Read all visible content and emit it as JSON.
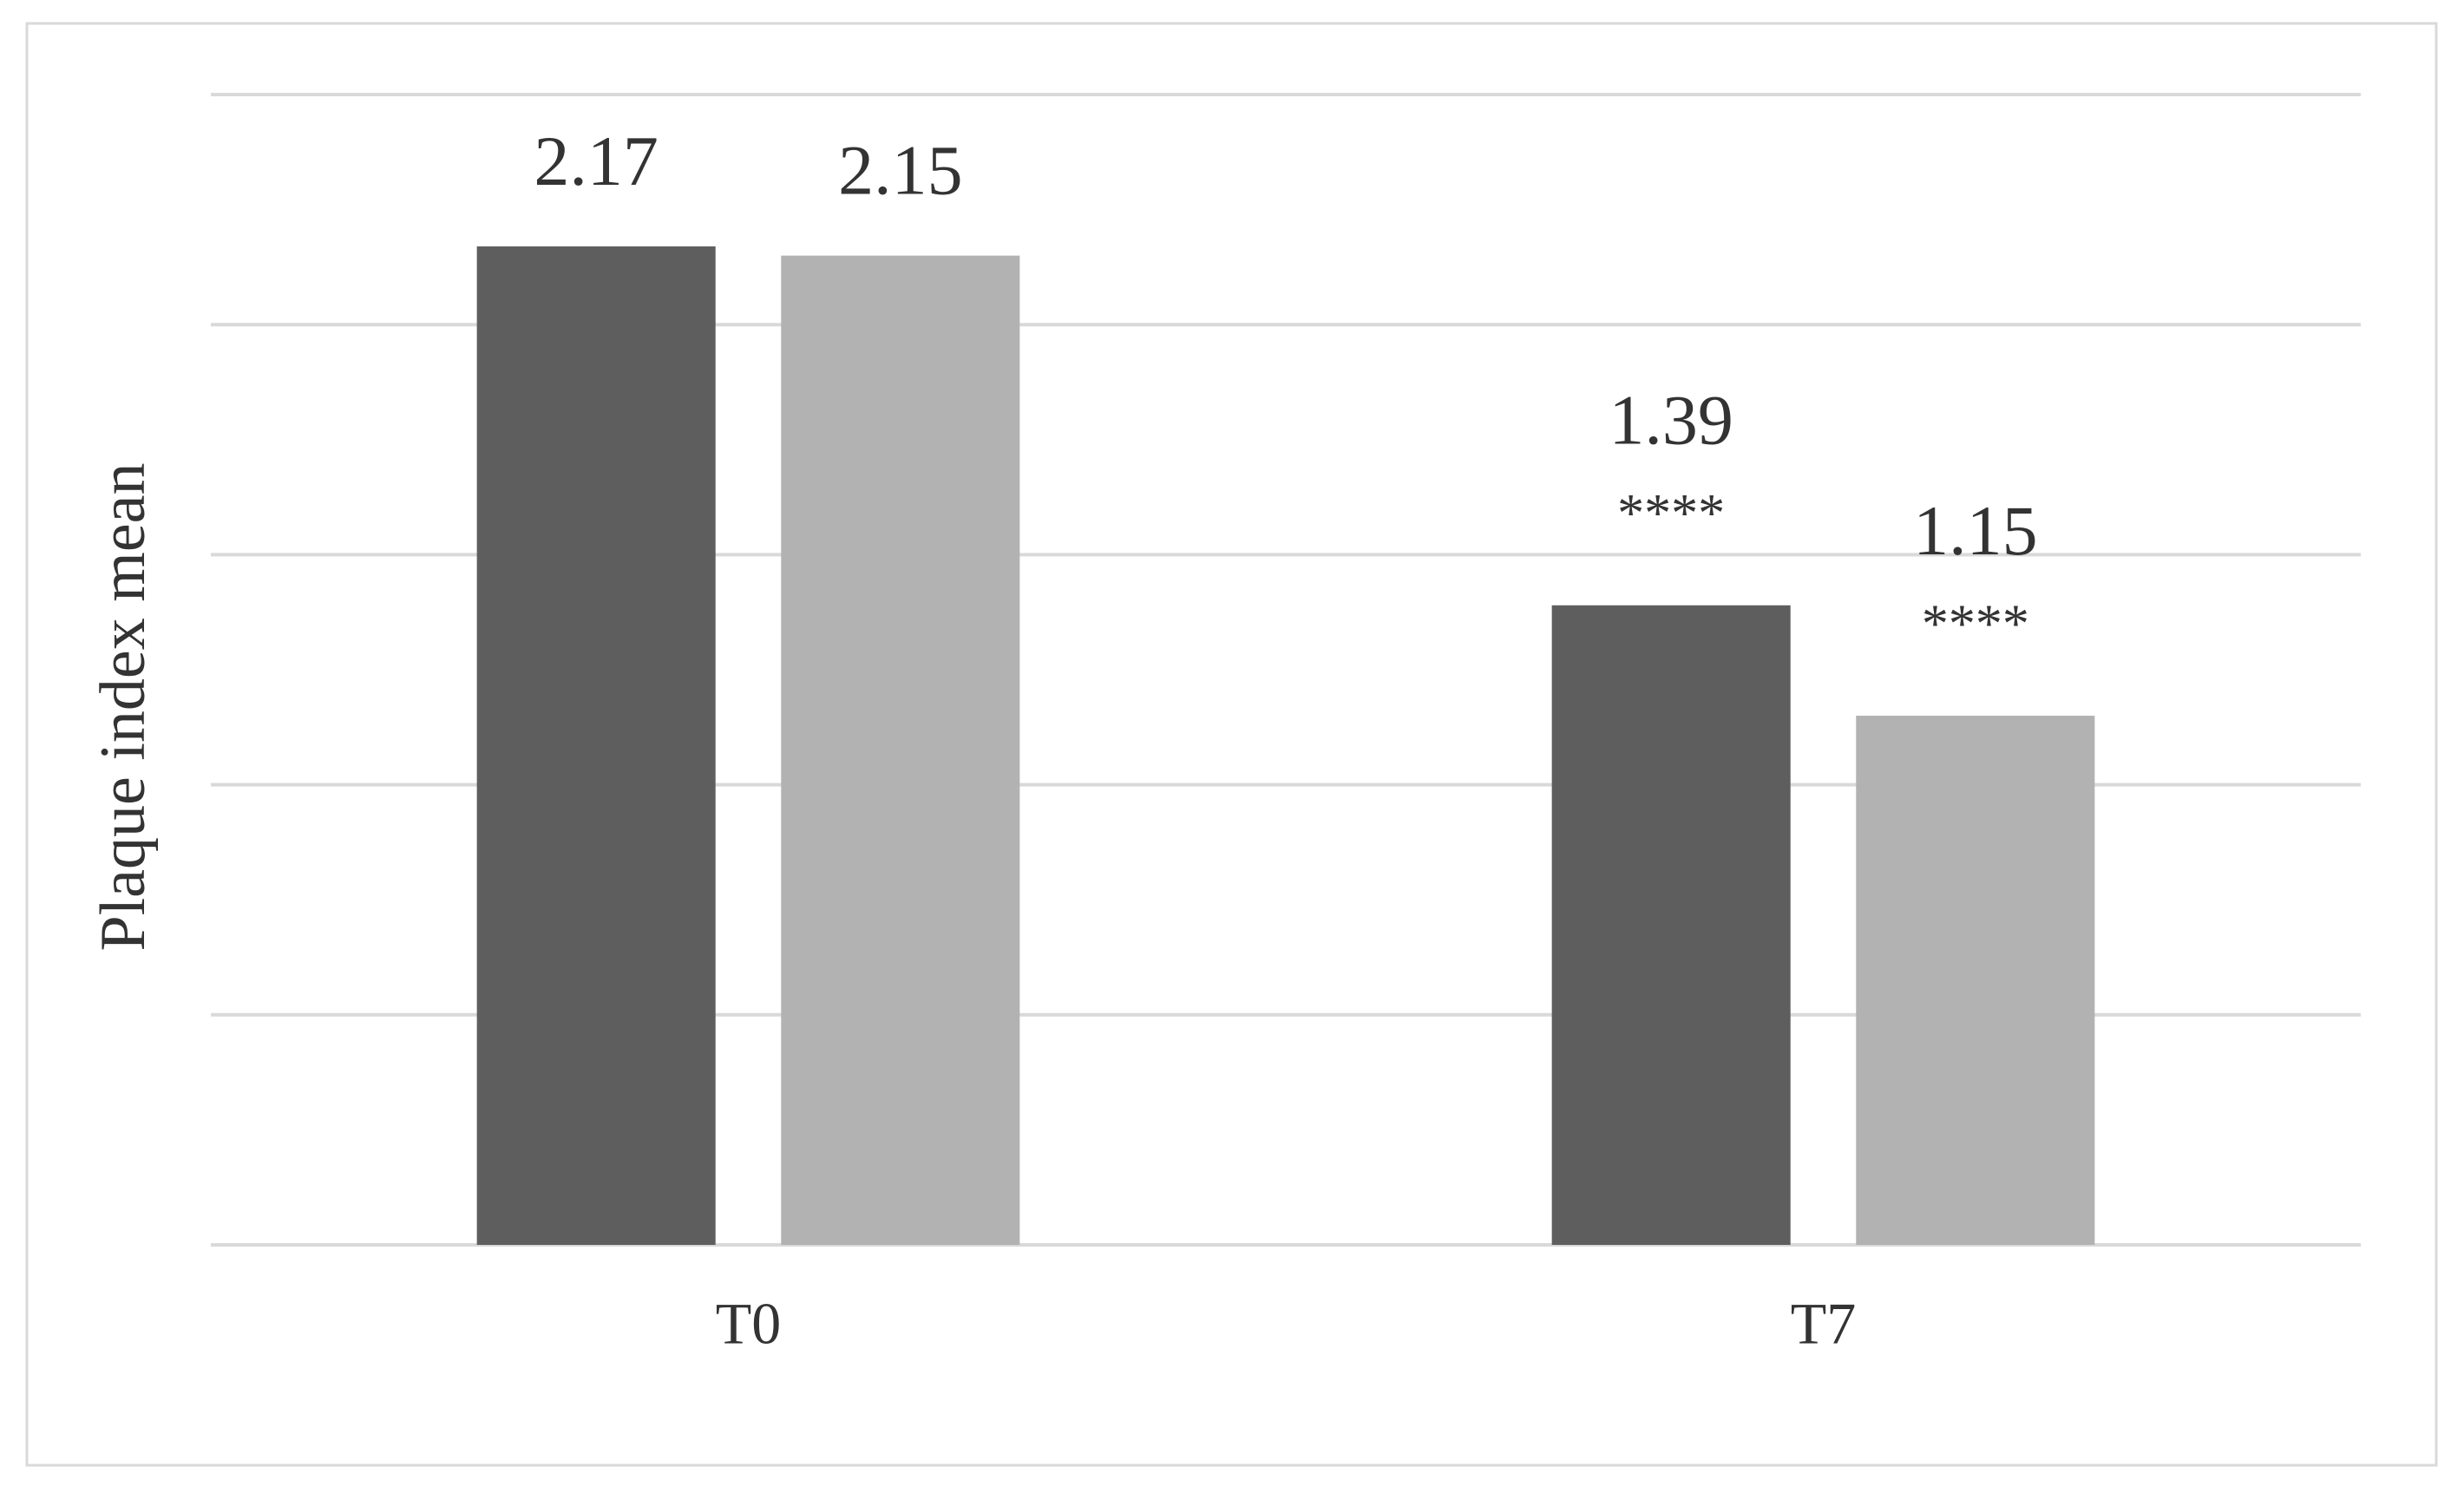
{
  "chart_data": {
    "type": "bar",
    "y_label": "Plaque index mean",
    "categories": [
      "T0",
      "T7"
    ],
    "series": [
      {
        "color": "#5e5e5e",
        "values": [
          2.17,
          1.39
        ],
        "annotations": [
          null,
          "****"
        ]
      },
      {
        "color": "#b2b2b2",
        "values": [
          2.15,
          1.15
        ],
        "annotations": [
          null,
          "****"
        ]
      }
    ],
    "ylim": [
      0,
      2.5
    ],
    "yticks": [
      0,
      0.5,
      1,
      1.5,
      2,
      2.5
    ],
    "grid": true,
    "ytick_labels": false
  }
}
